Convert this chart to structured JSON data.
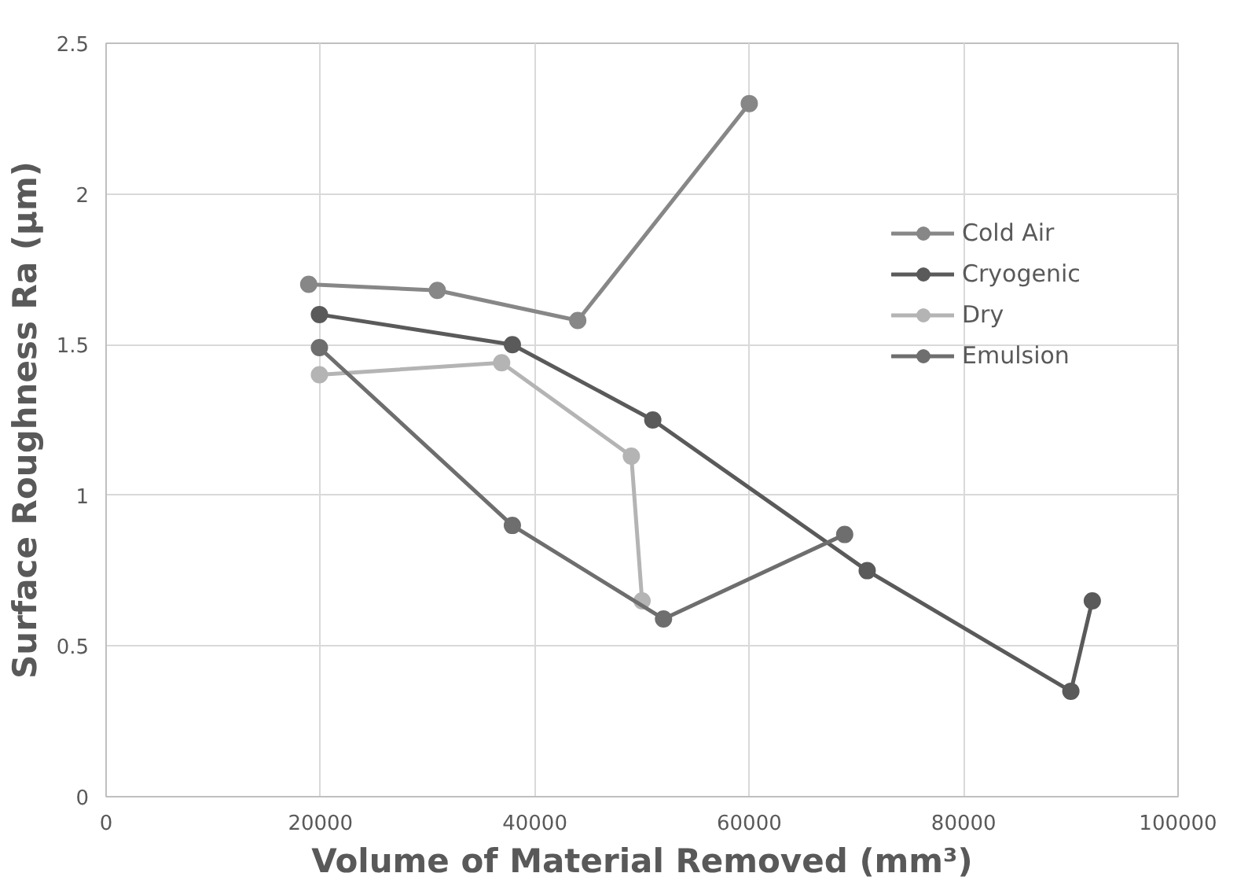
{
  "chart_data": {
    "type": "line",
    "xlabel": "Volume of Material Removed (mm³)",
    "ylabel": "Surface Roughness Ra (µm)",
    "xlim": [
      0,
      100000
    ],
    "xticks": [
      0,
      20000,
      40000,
      60000,
      80000,
      100000
    ],
    "ylim": [
      0,
      2.5
    ],
    "yticks": [
      0,
      0.5,
      1,
      1.5,
      2,
      2.5
    ],
    "grid": true,
    "legend": "top right",
    "marker": "circle",
    "line_style": "solid",
    "series": [
      {
        "name": "Cold Air",
        "color": "#878787",
        "x": [
          18900,
          30900,
          44000,
          60000
        ],
        "values": [
          1.7,
          1.68,
          1.58,
          2.3
        ]
      },
      {
        "name": "Cryogenic",
        "color": "#5a5a5a",
        "x": [
          19900,
          37900,
          51000,
          71000,
          90000,
          92000
        ],
        "values": [
          1.6,
          1.5,
          1.25,
          0.75,
          0.35,
          0.65
        ]
      },
      {
        "name": "Dry",
        "color": "#b4b4b4",
        "x": [
          19900,
          36900,
          49000,
          50000
        ],
        "values": [
          1.4,
          1.44,
          1.13,
          0.65
        ]
      },
      {
        "name": "Emulsion",
        "color": "#6e6e6e",
        "x": [
          19900,
          37900,
          52000,
          68900
        ],
        "values": [
          1.49,
          0.9,
          0.59,
          0.87
        ]
      }
    ]
  }
}
